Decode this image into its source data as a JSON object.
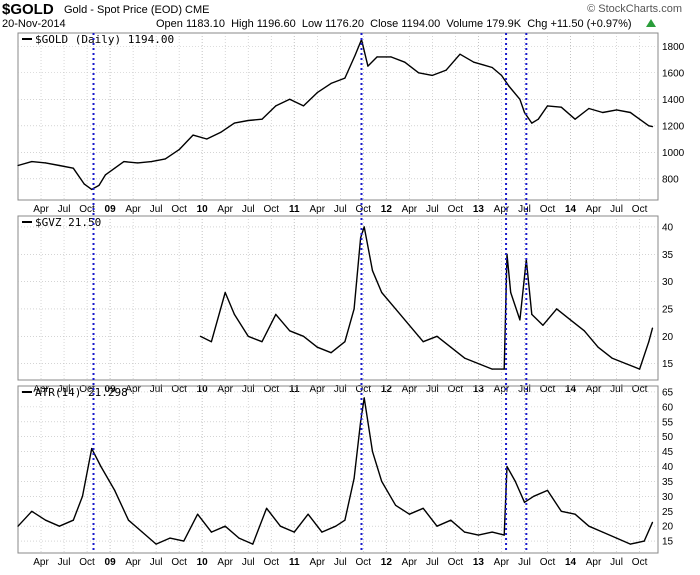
{
  "header": {
    "symbol": "$GOLD",
    "subtitle": "Gold - Spot Price (EOD) CME",
    "brand": "© StockCharts.com",
    "date": "20-Nov-2014",
    "open_label": "Open",
    "open": "1183.10",
    "high_label": "High",
    "high": "1196.60",
    "low_label": "Low",
    "low": "1176.20",
    "close_label": "Close",
    "close": "1194.00",
    "volume_label": "Volume",
    "volume": "179.9K",
    "chg_label": "Chg",
    "chg": "+11.50 (+0.97%)",
    "chg_icon": "up-arrow-icon"
  },
  "colors": {
    "line": "#000000",
    "vline": "#1a1acc",
    "grid": "#bbbbbb",
    "up": "#2a9d3a"
  },
  "chart_data": [
    {
      "type": "line",
      "legend": "$GOLD (Daily) 1194.00",
      "yticks": [
        800,
        1000,
        1200,
        1400,
        1600,
        1800
      ],
      "ylim": [
        640,
        1900
      ],
      "x": [
        2008.0,
        2008.15,
        2008.3,
        2008.45,
        2008.6,
        2008.72,
        2008.8,
        2008.88,
        2008.95,
        2009.05,
        2009.15,
        2009.3,
        2009.45,
        2009.6,
        2009.75,
        2009.9,
        2010.05,
        2010.2,
        2010.35,
        2010.5,
        2010.65,
        2010.8,
        2010.95,
        2011.1,
        2011.25,
        2011.4,
        2011.55,
        2011.66,
        2011.73,
        2011.8,
        2011.9,
        2012.05,
        2012.2,
        2012.35,
        2012.5,
        2012.65,
        2012.8,
        2012.95,
        2013.05,
        2013.15,
        2013.25,
        2013.33,
        2013.45,
        2013.5,
        2013.58,
        2013.65,
        2013.75,
        2013.9,
        2014.05,
        2014.2,
        2014.35,
        2014.5,
        2014.65,
        2014.75,
        2014.85,
        2014.89
      ],
      "y": [
        900,
        930,
        920,
        900,
        880,
        760,
        720,
        750,
        830,
        880,
        930,
        920,
        930,
        950,
        1020,
        1130,
        1100,
        1150,
        1220,
        1240,
        1250,
        1350,
        1400,
        1350,
        1450,
        1520,
        1560,
        1730,
        1850,
        1650,
        1720,
        1720,
        1680,
        1600,
        1580,
        1620,
        1740,
        1680,
        1660,
        1640,
        1580,
        1500,
        1400,
        1300,
        1220,
        1250,
        1350,
        1340,
        1250,
        1330,
        1300,
        1320,
        1300,
        1250,
        1200,
        1194
      ]
    },
    {
      "type": "line",
      "legend": "$GVZ 21.50",
      "yticks": [
        15,
        20,
        25,
        30,
        35,
        40
      ],
      "ylim": [
        12,
        42
      ],
      "x": [
        2009.98,
        2010.1,
        2010.25,
        2010.35,
        2010.5,
        2010.65,
        2010.8,
        2010.95,
        2011.1,
        2011.25,
        2011.4,
        2011.55,
        2011.65,
        2011.72,
        2011.76,
        2011.85,
        2011.95,
        2012.1,
        2012.25,
        2012.4,
        2012.55,
        2012.7,
        2012.85,
        2013.0,
        2013.15,
        2013.28,
        2013.31,
        2013.35,
        2013.45,
        2013.52,
        2013.58,
        2013.7,
        2013.85,
        2014.0,
        2014.15,
        2014.3,
        2014.45,
        2014.6,
        2014.75,
        2014.85,
        2014.89
      ],
      "y": [
        20,
        19,
        28,
        24,
        20,
        19,
        24,
        21,
        20,
        18,
        17,
        19,
        25,
        38,
        40,
        32,
        28,
        25,
        22,
        19,
        20,
        18,
        16,
        15,
        14,
        14,
        35,
        28,
        23,
        34,
        24,
        22,
        25,
        23,
        21,
        18,
        16,
        15,
        14,
        19,
        21.5
      ]
    },
    {
      "type": "line",
      "legend": "ATR(14) 21.298",
      "yticks": [
        15,
        20,
        25,
        30,
        35,
        40,
        45,
        50,
        55,
        60,
        65
      ],
      "ylim": [
        11,
        67
      ],
      "x": [
        2008.0,
        2008.15,
        2008.3,
        2008.45,
        2008.6,
        2008.7,
        2008.8,
        2008.9,
        2009.05,
        2009.2,
        2009.35,
        2009.5,
        2009.65,
        2009.8,
        2009.95,
        2010.1,
        2010.25,
        2010.4,
        2010.55,
        2010.7,
        2010.85,
        2011.0,
        2011.15,
        2011.3,
        2011.45,
        2011.55,
        2011.65,
        2011.72,
        2011.76,
        2011.85,
        2011.95,
        2012.1,
        2012.25,
        2012.4,
        2012.55,
        2012.7,
        2012.85,
        2013.0,
        2013.15,
        2013.28,
        2013.31,
        2013.4,
        2013.5,
        2013.6,
        2013.75,
        2013.9,
        2014.05,
        2014.2,
        2014.35,
        2014.5,
        2014.65,
        2014.8,
        2014.89
      ],
      "y": [
        20,
        25,
        22,
        20,
        22,
        30,
        46,
        40,
        32,
        22,
        18,
        14,
        16,
        15,
        24,
        18,
        20,
        16,
        14,
        26,
        20,
        18,
        24,
        18,
        20,
        22,
        36,
        55,
        63,
        45,
        35,
        27,
        24,
        26,
        20,
        22,
        18,
        17,
        18,
        17,
        40,
        35,
        28,
        30,
        32,
        25,
        24,
        20,
        18,
        16,
        14,
        15,
        21.3
      ]
    }
  ],
  "xaxis": {
    "labels": [
      "Apr",
      "Jul",
      "Oct",
      "09",
      "Apr",
      "Jul",
      "Oct",
      "10",
      "Apr",
      "Jul",
      "Oct",
      "11",
      "Apr",
      "Jul",
      "Oct",
      "12",
      "Apr",
      "Jul",
      "Oct",
      "13",
      "Apr",
      "Jul",
      "Oct",
      "14",
      "Apr",
      "Jul",
      "Oct"
    ],
    "positions": [
      2008.25,
      2008.5,
      2008.75,
      2009.0,
      2009.25,
      2009.5,
      2009.75,
      2010.0,
      2010.25,
      2010.5,
      2010.75,
      2011.0,
      2011.25,
      2011.5,
      2011.75,
      2012.0,
      2012.25,
      2012.5,
      2012.75,
      2013.0,
      2013.25,
      2013.5,
      2013.75,
      2014.0,
      2014.25,
      2014.5,
      2014.75
    ],
    "year_labels": [
      "09",
      "10",
      "11",
      "12",
      "13",
      "14"
    ],
    "range": [
      2008.0,
      2014.95
    ]
  },
  "event_lines": [
    2008.82,
    2011.73,
    2013.3,
    2013.52
  ]
}
